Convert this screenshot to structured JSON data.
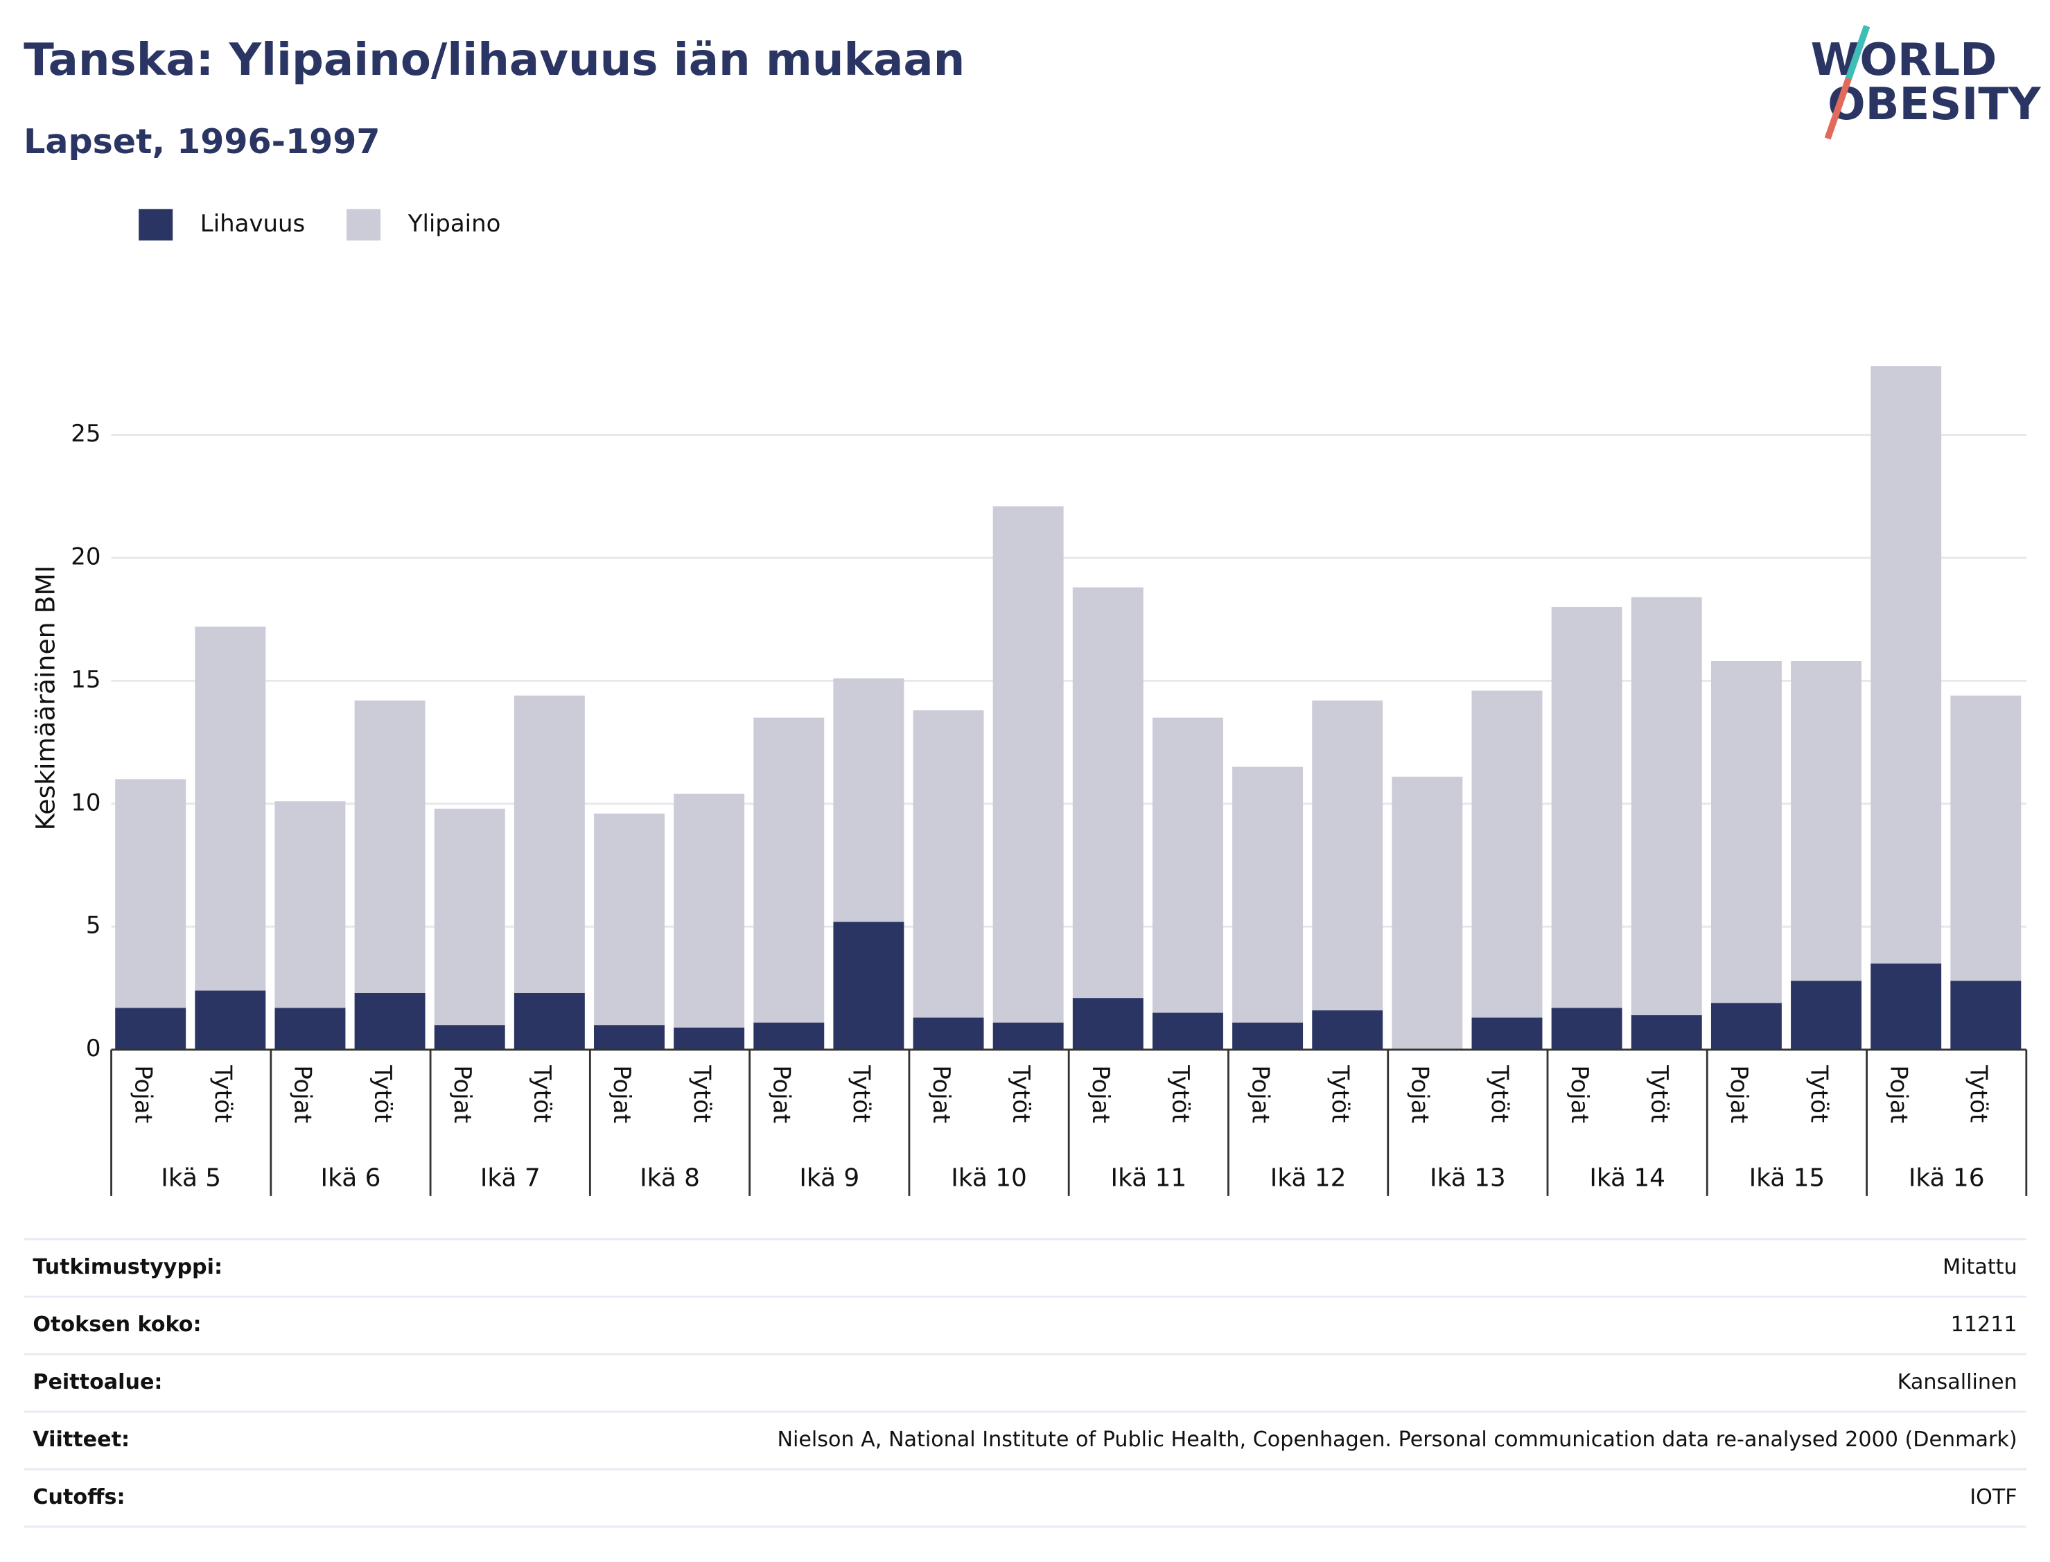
{
  "chart_data": {
    "type": "stacked_bar",
    "title": "Tanska: Ylipaino/lihavuus iän mukaan",
    "subtitle": "Lapset, 1996-1997",
    "logo": [
      "WORLD",
      "OBESITY"
    ],
    "y_label": "Keskimääräinen BMI",
    "groups": [
      "Ikä 5",
      "Ikä 6",
      "Ikä 7",
      "Ikä 8",
      "Ikä 9",
      "Ikä 10",
      "Ikä 11",
      "Ikä 12",
      "Ikä 13",
      "Ikä 14",
      "Ikä 15",
      "Ikä 16"
    ],
    "categories": [
      "Pojat",
      "Tytöt",
      "Pojat",
      "Tytöt",
      "Pojat",
      "Tytöt",
      "Pojat",
      "Tytöt",
      "Pojat",
      "Tytöt",
      "Pojat",
      "Tytöt",
      "Pojat",
      "Tytöt",
      "Pojat",
      "Tytöt",
      "Pojat",
      "Tytöt",
      "Pojat",
      "Tytöt",
      "Pojat",
      "Tytöt",
      "Pojat",
      "Tytöt"
    ],
    "series": [
      {
        "name": "Lihavuus",
        "color": "#2a3563",
        "values": [
          1.7,
          2.4,
          1.7,
          2.3,
          1.0,
          2.3,
          1.0,
          0.9,
          1.1,
          5.2,
          1.3,
          1.1,
          2.1,
          1.5,
          1.1,
          1.6,
          0,
          1.3,
          1.7,
          1.4,
          1.9,
          2.8,
          3.5,
          2.8
        ]
      },
      {
        "name": "Ylipaino",
        "color": "#cbccd8",
        "values": [
          9.3,
          14.8,
          8.4,
          11.9,
          8.8,
          12.1,
          8.6,
          9.5,
          12.4,
          9.9,
          12.5,
          21.0,
          16.7,
          12.0,
          10.4,
          12.6,
          11.1,
          13.3,
          16.3,
          17.0,
          13.9,
          13.0,
          24.3,
          11.6
        ]
      }
    ],
    "ylim": [
      0,
      28.6
    ],
    "yticks": [
      0,
      5,
      10,
      15,
      20,
      25
    ],
    "grid": true,
    "legend": "top-left",
    "info": [
      [
        "Tutkimustyyppi:",
        "Mitattu"
      ],
      [
        "Otoksen koko:",
        "11211"
      ],
      [
        "Peittoalue:",
        "Kansallinen"
      ],
      [
        "Viitteet:",
        "Nielson A, National Institute of Public Health, Copenhagen. Personal communication data re-analysed 2000 (Denmark)"
      ],
      [
        "Cutoffs:",
        "IOTF"
      ]
    ]
  }
}
